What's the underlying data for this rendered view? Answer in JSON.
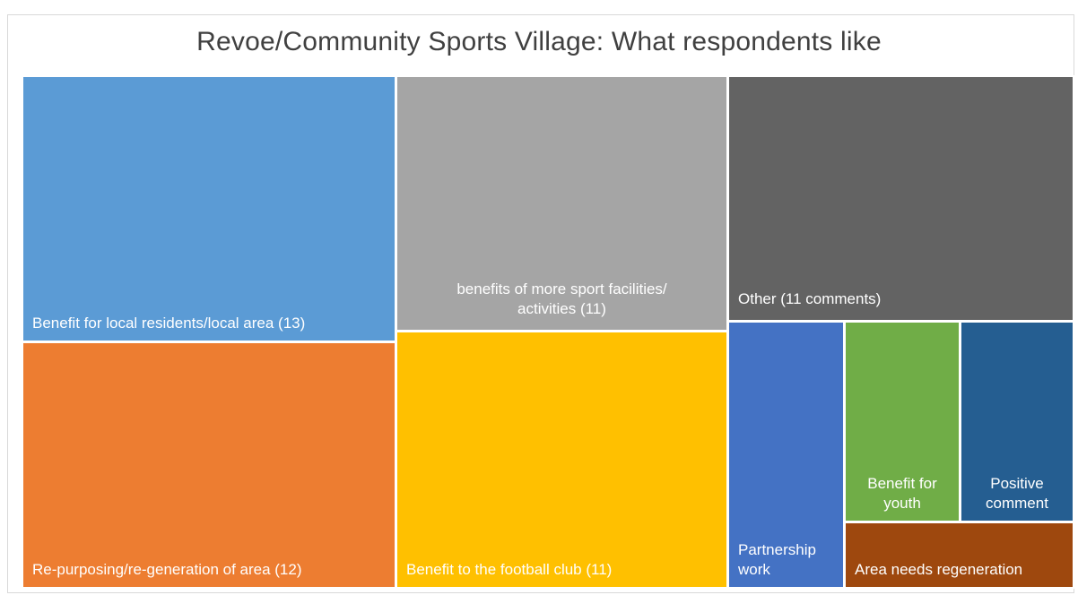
{
  "chart_data": {
    "type": "treemap",
    "title": "Revoe/Community Sports Village: What respondents like",
    "items": [
      {
        "label": "Benefit for local residents/local area (13)",
        "value": 13,
        "color": "#5b9bd5"
      },
      {
        "label": "Re-purposing/re-generation of area (12)",
        "value": 12,
        "color": "#ed7d31"
      },
      {
        "label": "benefits of more sport facilities/ activities (11)",
        "value": 11,
        "color": "#a5a5a5"
      },
      {
        "label": "Benefit to the football club (11)",
        "value": 11,
        "color": "#ffc000"
      },
      {
        "label": "Other (11 comments)",
        "value": 11,
        "color": "#636363"
      },
      {
        "label": "Partnership work",
        "color": "#4472c4"
      },
      {
        "label": "Benefit for youth",
        "color": "#70ad47"
      },
      {
        "label": "Positive comment",
        "color": "#255e91"
      },
      {
        "label": "Area needs regeneration",
        "color": "#9e480e"
      }
    ]
  }
}
